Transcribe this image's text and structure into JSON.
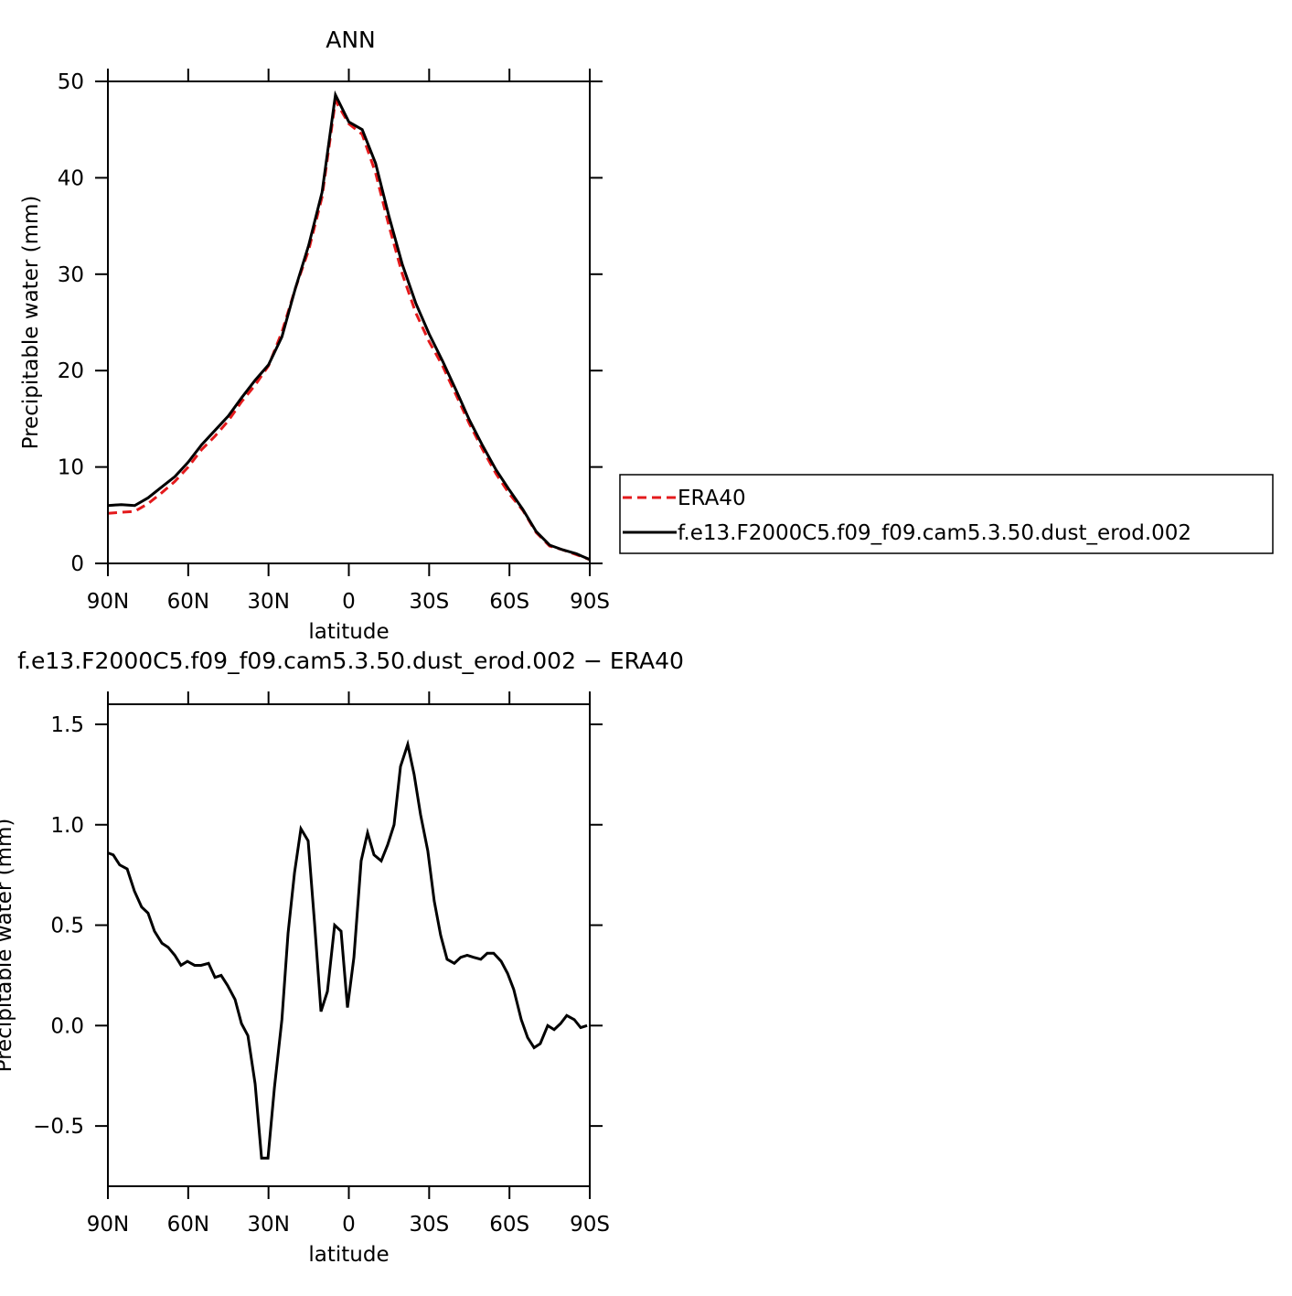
{
  "chart_data": [
    {
      "type": "line",
      "title": "ANN",
      "xlabel": "latitude",
      "ylabel": "Precipitable water (mm)",
      "x": [
        90,
        85,
        80,
        75,
        70,
        65,
        60,
        55,
        50,
        45,
        40,
        35,
        30,
        25,
        20,
        15,
        10,
        5,
        0,
        -5,
        -10,
        -15,
        -20,
        -25,
        -30,
        -35,
        -40,
        -45,
        -50,
        -55,
        -60,
        -65,
        -70,
        -75,
        -80,
        -85,
        -90
      ],
      "series": [
        {
          "name": "ERA40",
          "color": "#e41a1c",
          "linestyle": "dashed",
          "values": [
            5.2,
            5.3,
            5.4,
            6.2,
            7.3,
            8.5,
            10.0,
            11.8,
            13.2,
            14.8,
            16.8,
            18.5,
            20.5,
            24.0,
            28.5,
            32.5,
            38.0,
            48.0,
            45.6,
            44.5,
            40.5,
            35.0,
            30.0,
            26.0,
            23.0,
            20.5,
            17.5,
            14.5,
            11.8,
            9.3,
            7.2,
            5.5,
            3.2,
            1.8,
            1.4,
            0.9,
            0.4
          ]
        },
        {
          "name": "f.e13.F2000C5.f09_f09.cam5.3.50.dust_erod.002",
          "color": "#000000",
          "linestyle": "solid",
          "values": [
            6.0,
            6.1,
            6.0,
            6.8,
            7.9,
            9.0,
            10.5,
            12.3,
            13.8,
            15.3,
            17.2,
            19.0,
            20.6,
            23.5,
            28.5,
            33.0,
            38.5,
            48.6,
            45.8,
            45.0,
            41.5,
            36.0,
            31.0,
            27.0,
            23.8,
            21.0,
            18.0,
            14.9,
            12.2,
            9.7,
            7.6,
            5.6,
            3.3,
            1.9,
            1.4,
            1.0,
            0.4
          ]
        }
      ],
      "xlim": [
        90,
        -90
      ],
      "xticks": [
        {
          "value": 90,
          "label": "90N"
        },
        {
          "value": 60,
          "label": "60N"
        },
        {
          "value": 30,
          "label": "30N"
        },
        0,
        {
          "value": -30,
          "label": "30S"
        },
        {
          "value": -60,
          "label": "60S"
        },
        {
          "value": -90,
          "label": "90S"
        }
      ],
      "ylim": [
        0,
        50
      ],
      "yticks": [
        0,
        10,
        20,
        30,
        40,
        50
      ],
      "legend": "right"
    },
    {
      "type": "line",
      "title": "f.e13.F2000C5.f09_f09.cam5.3.50.dust_erod.002 − ERA40",
      "xlabel": "latitude",
      "ylabel": "Precipitable water (mm)",
      "x": [
        90,
        88,
        85.6,
        82.8,
        80.1,
        77.4,
        75,
        72.6,
        69.8,
        67.5,
        65,
        62.7,
        60.3,
        57.6,
        55.2,
        52.4,
        50,
        47.7,
        45.3,
        42.5,
        40.1,
        37.7,
        35,
        32.6,
        30.2,
        27.8,
        25,
        22.7,
        20.3,
        17.9,
        15.2,
        12.8,
        10.4,
        8,
        5.3,
        2.9,
        0.5,
        -1.9,
        -4.6,
        -7,
        -9.4,
        -12.1,
        -14.5,
        -16.9,
        -19.3,
        -22,
        -24.4,
        -26.8,
        -29.5,
        -31.9,
        -34.3,
        -36.7,
        -39.4,
        -41.8,
        -44.2,
        -46.6,
        -49.3,
        -51.7,
        -54.1,
        -56.9,
        -59.3,
        -61.6,
        -64.4,
        -66.8,
        -69.2,
        -71.5,
        -74.3,
        -76.7,
        -79.1,
        -81.4,
        -84.2,
        -86.6,
        -89
      ],
      "series": [
        {
          "color": "#000000",
          "linestyle": "solid",
          "values": [
            0.86,
            0.85,
            0.8,
            0.78,
            0.67,
            0.59,
            0.56,
            0.47,
            0.41,
            0.39,
            0.35,
            0.3,
            0.32,
            0.3,
            0.3,
            0.31,
            0.24,
            0.25,
            0.2,
            0.13,
            0.01,
            -0.05,
            -0.29,
            -0.66,
            -0.66,
            -0.31,
            0.03,
            0.46,
            0.76,
            0.98,
            0.92,
            0.51,
            0.07,
            0.17,
            0.5,
            0.47,
            0.09,
            0.34,
            0.82,
            0.96,
            0.85,
            0.82,
            0.9,
            1.0,
            1.29,
            1.4,
            1.25,
            1.05,
            0.87,
            0.62,
            0.45,
            0.33,
            0.31,
            0.34,
            0.35,
            0.34,
            0.33,
            0.36,
            0.36,
            0.32,
            0.26,
            0.18,
            0.03,
            -0.06,
            -0.11,
            -0.09,
            0.0,
            -0.02,
            0.01,
            0.05,
            0.03,
            -0.01,
            0.0
          ]
        }
      ],
      "xlim": [
        90,
        -90
      ],
      "xticks": [
        {
          "value": 90,
          "label": "90N"
        },
        {
          "value": 60,
          "label": "60N"
        },
        {
          "value": 30,
          "label": "30N"
        },
        0,
        {
          "value": -30,
          "label": "30S"
        },
        {
          "value": -60,
          "label": "60S"
        },
        {
          "value": -90,
          "label": "90S"
        }
      ],
      "ylim": [
        -0.8,
        1.6
      ],
      "yticks": [
        {
          "value": -0.5,
          "label": "−0.5"
        },
        {
          "value": 0,
          "label": "0.0"
        },
        0.5,
        {
          "value": 1,
          "label": "1.0"
        },
        1.5
      ]
    }
  ]
}
